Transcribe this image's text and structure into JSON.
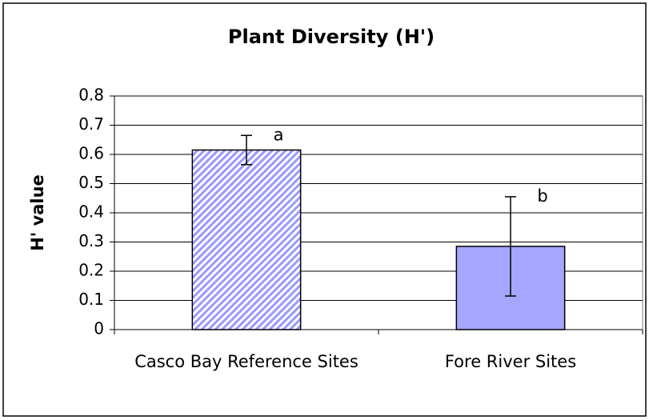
{
  "chart_data": {
    "type": "bar",
    "title": "Plant Diversity (H')",
    "ylabel": "H' value",
    "categories": [
      "Casco Bay Reference Sites",
      "Fore River Sites"
    ],
    "values": [
      0.615,
      0.285
    ],
    "errors": [
      0.05,
      0.17
    ],
    "annotations": [
      "a",
      "b"
    ],
    "colors": [
      "#9999ff",
      "#a6a6ff"
    ],
    "bar_styles": [
      "hatched",
      "solid"
    ],
    "ylim": [
      0,
      0.8
    ],
    "yticks": [
      0,
      0.1,
      0.2,
      0.3,
      0.4,
      0.5,
      0.6,
      0.7,
      0.8
    ],
    "grid": true
  }
}
